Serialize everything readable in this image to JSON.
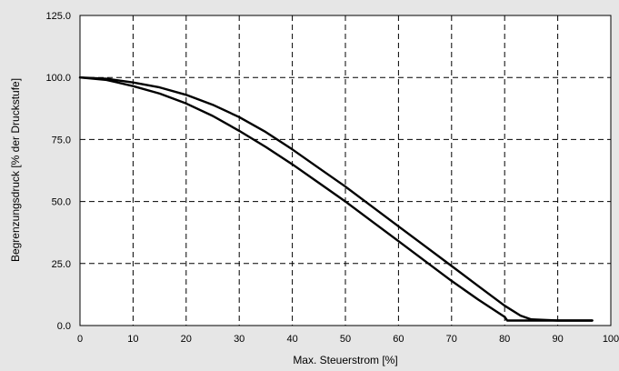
{
  "chart_data": {
    "type": "line",
    "title": "",
    "xlabel": "Max. Steuerstrom  [%]",
    "ylabel": "Begrenzungsdruck [% der Druckstufe]",
    "xlim": [
      0,
      100
    ],
    "ylim": [
      0,
      125
    ],
    "grid": true,
    "legend": "none",
    "x_ticks": [
      "0",
      "10",
      "20",
      "30",
      "40",
      "50",
      "60",
      "70",
      "80",
      "90",
      "100"
    ],
    "y_ticks": [
      "0.0",
      "25.0",
      "50.0",
      "75.0",
      "100.0",
      "125.0"
    ],
    "series": [
      {
        "color": "#000000",
        "points": [
          [
            0,
            100
          ],
          [
            5,
            99.5
          ],
          [
            10,
            98
          ],
          [
            15,
            96
          ],
          [
            20,
            93
          ],
          [
            25,
            89
          ],
          [
            30,
            84
          ],
          [
            35,
            78
          ],
          [
            40,
            71
          ],
          [
            45,
            63.5
          ],
          [
            50,
            56
          ],
          [
            55,
            48
          ],
          [
            60,
            40
          ],
          [
            65,
            32
          ],
          [
            70,
            24
          ],
          [
            75,
            16
          ],
          [
            80,
            8
          ],
          [
            83,
            4
          ],
          [
            85,
            2.5
          ],
          [
            90,
            2
          ],
          [
            96.5,
            2
          ]
        ]
      },
      {
        "color": "#000000",
        "points": [
          [
            0,
            100
          ],
          [
            5,
            99
          ],
          [
            10,
            96.5
          ],
          [
            15,
            93.5
          ],
          [
            20,
            89.5
          ],
          [
            25,
            84.5
          ],
          [
            30,
            78.5
          ],
          [
            35,
            72
          ],
          [
            40,
            65
          ],
          [
            45,
            57.5
          ],
          [
            50,
            50
          ],
          [
            55,
            42
          ],
          [
            60,
            34
          ],
          [
            65,
            26
          ],
          [
            70,
            18
          ],
          [
            75,
            10.5
          ],
          [
            80,
            3.5
          ],
          [
            80.5,
            2
          ],
          [
            85,
            2
          ],
          [
            90,
            2
          ],
          [
            96.5,
            2
          ]
        ]
      }
    ]
  }
}
